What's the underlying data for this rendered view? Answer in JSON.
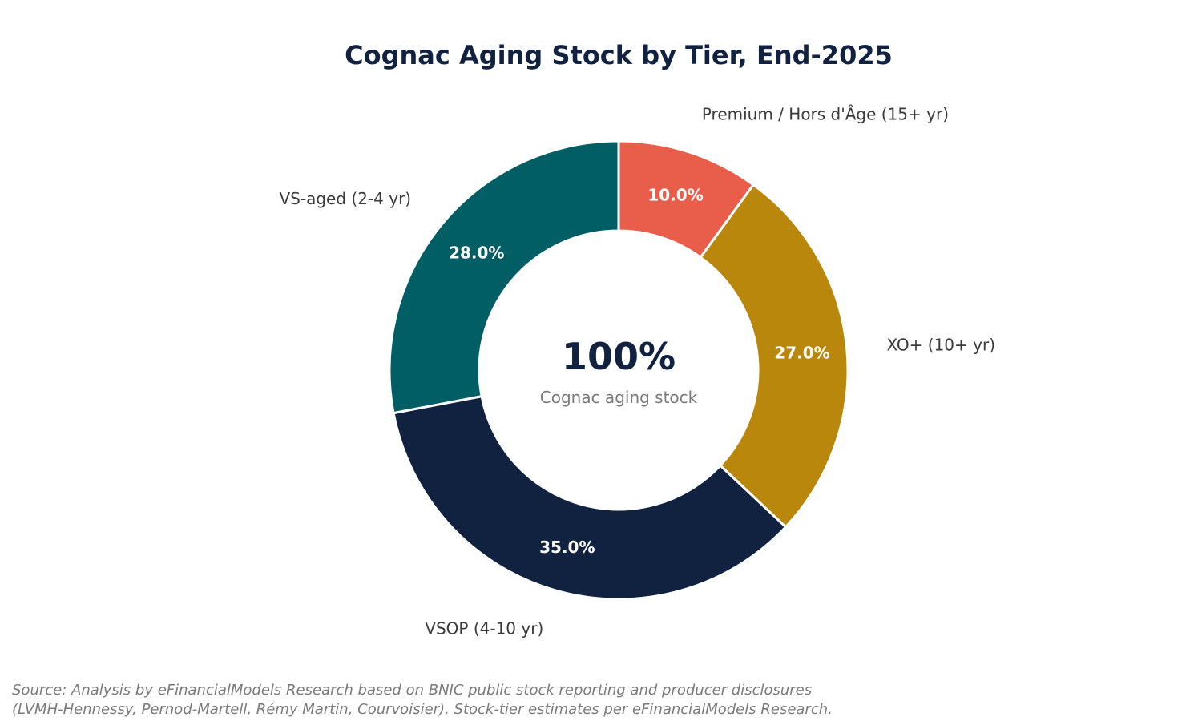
{
  "chart_data": {
    "type": "pie",
    "title": "Cognac Aging Stock by Tier, End-2025",
    "donut": true,
    "center_value": "100%",
    "center_caption": "Cognac aging stock",
    "slices": [
      {
        "label": "Premium / Hors d'Âge (15+ yr)",
        "value": 10.0,
        "pct_label": "10.0%",
        "color": "#e85e4b"
      },
      {
        "label": "XO+ (10+ yr)",
        "value": 27.0,
        "pct_label": "27.0%",
        "color": "#b8870b"
      },
      {
        "label": "VSOP (4-10 yr)",
        "value": 35.0,
        "pct_label": "35.0%",
        "color": "#10223f"
      },
      {
        "label": "VS-aged (2-4 yr)",
        "value": 28.0,
        "pct_label": "28.0%",
        "color": "#025e65"
      }
    ],
    "start_angle": "12 o'clock",
    "direction": "clockwise"
  },
  "source": {
    "line1": "Source: Analysis by eFinancialModels Research based on BNIC public stock reporting and producer disclosures",
    "line2": "(LVMH-Hennessy, Pernod-Martell, Rémy Martin, Courvoisier). Stock-tier estimates per eFinancialModels Research."
  }
}
